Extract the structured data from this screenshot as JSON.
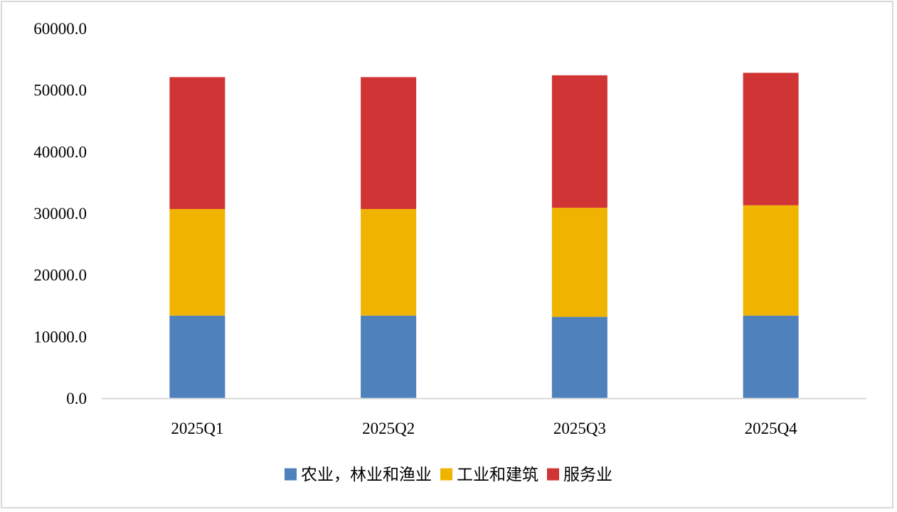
{
  "chart_data": {
    "type": "bar",
    "stacked": true,
    "categories": [
      "2025Q1",
      "2025Q2",
      "2025Q3",
      "2025Q4"
    ],
    "series": [
      {
        "name": "农业，林业和渔业",
        "color": "#4f81bd",
        "values": [
          13400,
          13400,
          13200,
          13400
        ]
      },
      {
        "name": "工业和建筑",
        "color": "#f0b400",
        "values": [
          17300,
          17300,
          17700,
          17900
        ]
      },
      {
        "name": "服务业",
        "color": "#d13434",
        "values": [
          21400,
          21400,
          21500,
          21500
        ]
      }
    ],
    "yticks": [
      "0.0",
      "10000.0",
      "20000.0",
      "30000.0",
      "40000.0",
      "50000.0",
      "60000.0"
    ],
    "ylim": [
      0,
      60000
    ],
    "grid": false,
    "legend_position": "bottom",
    "title": "",
    "xlabel": "",
    "ylabel": ""
  }
}
